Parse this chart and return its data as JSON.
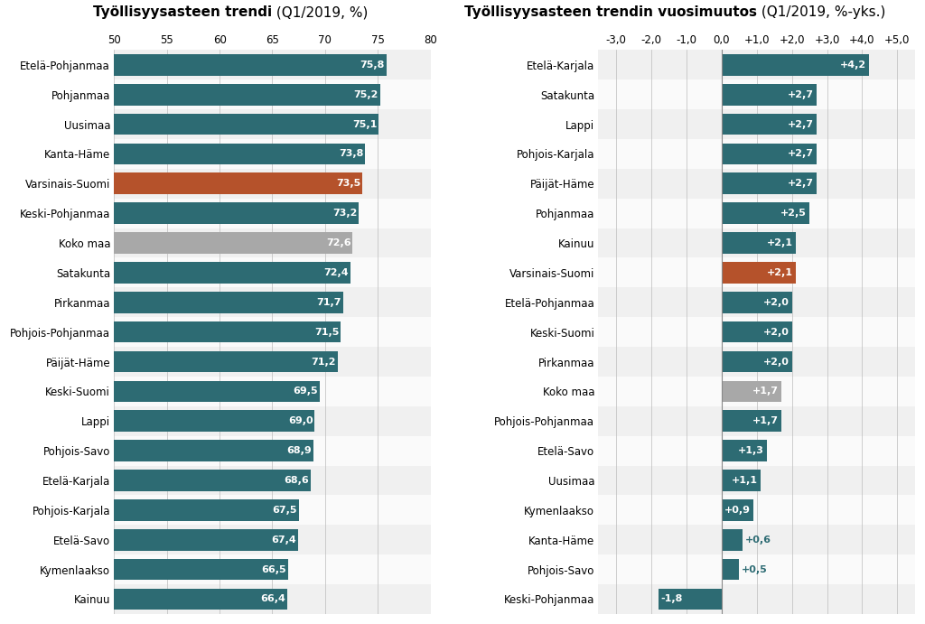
{
  "left_categories": [
    "Etelä-Pohjanmaa",
    "Pohjanmaa",
    "Uusimaa",
    "Kanta-Häme",
    "Varsinais-Suomi",
    "Keski-Pohjanmaa",
    "Koko maa",
    "Satakunta",
    "Pirkanmaa",
    "Pohjois-Pohjanmaa",
    "Päijät-Häme",
    "Keski-Suomi",
    "Lappi",
    "Pohjois-Savo",
    "Etelä-Karjala",
    "Pohjois-Karjala",
    "Etelä-Savo",
    "Kymenlaakso",
    "Kainuu"
  ],
  "left_values": [
    75.8,
    75.2,
    75.1,
    73.8,
    73.5,
    73.2,
    72.6,
    72.4,
    71.7,
    71.5,
    71.2,
    69.5,
    69.0,
    68.9,
    68.6,
    67.5,
    67.4,
    66.5,
    66.4
  ],
  "left_colors": [
    "#2d6b73",
    "#2d6b73",
    "#2d6b73",
    "#2d6b73",
    "#b5522b",
    "#2d6b73",
    "#a8a8a8",
    "#2d6b73",
    "#2d6b73",
    "#2d6b73",
    "#2d6b73",
    "#2d6b73",
    "#2d6b73",
    "#2d6b73",
    "#2d6b73",
    "#2d6b73",
    "#2d6b73",
    "#2d6b73",
    "#2d6b73"
  ],
  "left_title_bold": "Työllisyysasteen trendi",
  "left_title_normal": " (Q1/2019, %)",
  "left_xlim": [
    50,
    80
  ],
  "left_xticks": [
    50,
    55,
    60,
    65,
    70,
    75,
    80
  ],
  "right_categories": [
    "Etelä-Karjala",
    "Satakunta",
    "Lappi",
    "Pohjois-Karjala",
    "Päijät-Häme",
    "Pohjanmaa",
    "Kainuu",
    "Varsinais-Suomi",
    "Etelä-Pohjanmaa",
    "Keski-Suomi",
    "Pirkanmaa",
    "Koko maa",
    "Pohjois-Pohjanmaa",
    "Etelä-Savo",
    "Uusimaa",
    "Kymenlaakso",
    "Kanta-Häme",
    "Pohjois-Savo",
    "Keski-Pohjanmaa"
  ],
  "right_values": [
    4.2,
    2.7,
    2.7,
    2.7,
    2.7,
    2.5,
    2.1,
    2.1,
    2.0,
    2.0,
    2.0,
    1.7,
    1.7,
    1.3,
    1.1,
    0.9,
    0.6,
    0.5,
    -1.8
  ],
  "right_colors": [
    "#2d6b73",
    "#2d6b73",
    "#2d6b73",
    "#2d6b73",
    "#2d6b73",
    "#2d6b73",
    "#2d6b73",
    "#b5522b",
    "#2d6b73",
    "#2d6b73",
    "#2d6b73",
    "#a8a8a8",
    "#2d6b73",
    "#2d6b73",
    "#2d6b73",
    "#2d6b73",
    "#2d6b73",
    "#2d6b73",
    "#2d6b73"
  ],
  "right_title_bold": "Työllisyysasteen trendin vuosimuutos",
  "right_title_normal": " (Q1/2019, %-yks.)",
  "right_xlim": [
    -3.5,
    5.5
  ],
  "right_xticks": [
    -3.0,
    -2.0,
    -1.0,
    0.0,
    1.0,
    2.0,
    3.0,
    4.0,
    5.0
  ],
  "right_xticklabels": [
    "-3,0",
    "-2,0",
    "-1,0",
    "0,0",
    "+1,0",
    "+2,0",
    "+3,0",
    "+4,0",
    "+5,0"
  ],
  "bg_color": "#ffffff",
  "row_shade1": "#f0f0f0",
  "row_shade2": "#fafafa",
  "bar_height": 0.72,
  "label_fontsize": 8.5,
  "value_fontsize": 8.0,
  "title_fontsize": 11,
  "tick_fontsize": 8.5
}
